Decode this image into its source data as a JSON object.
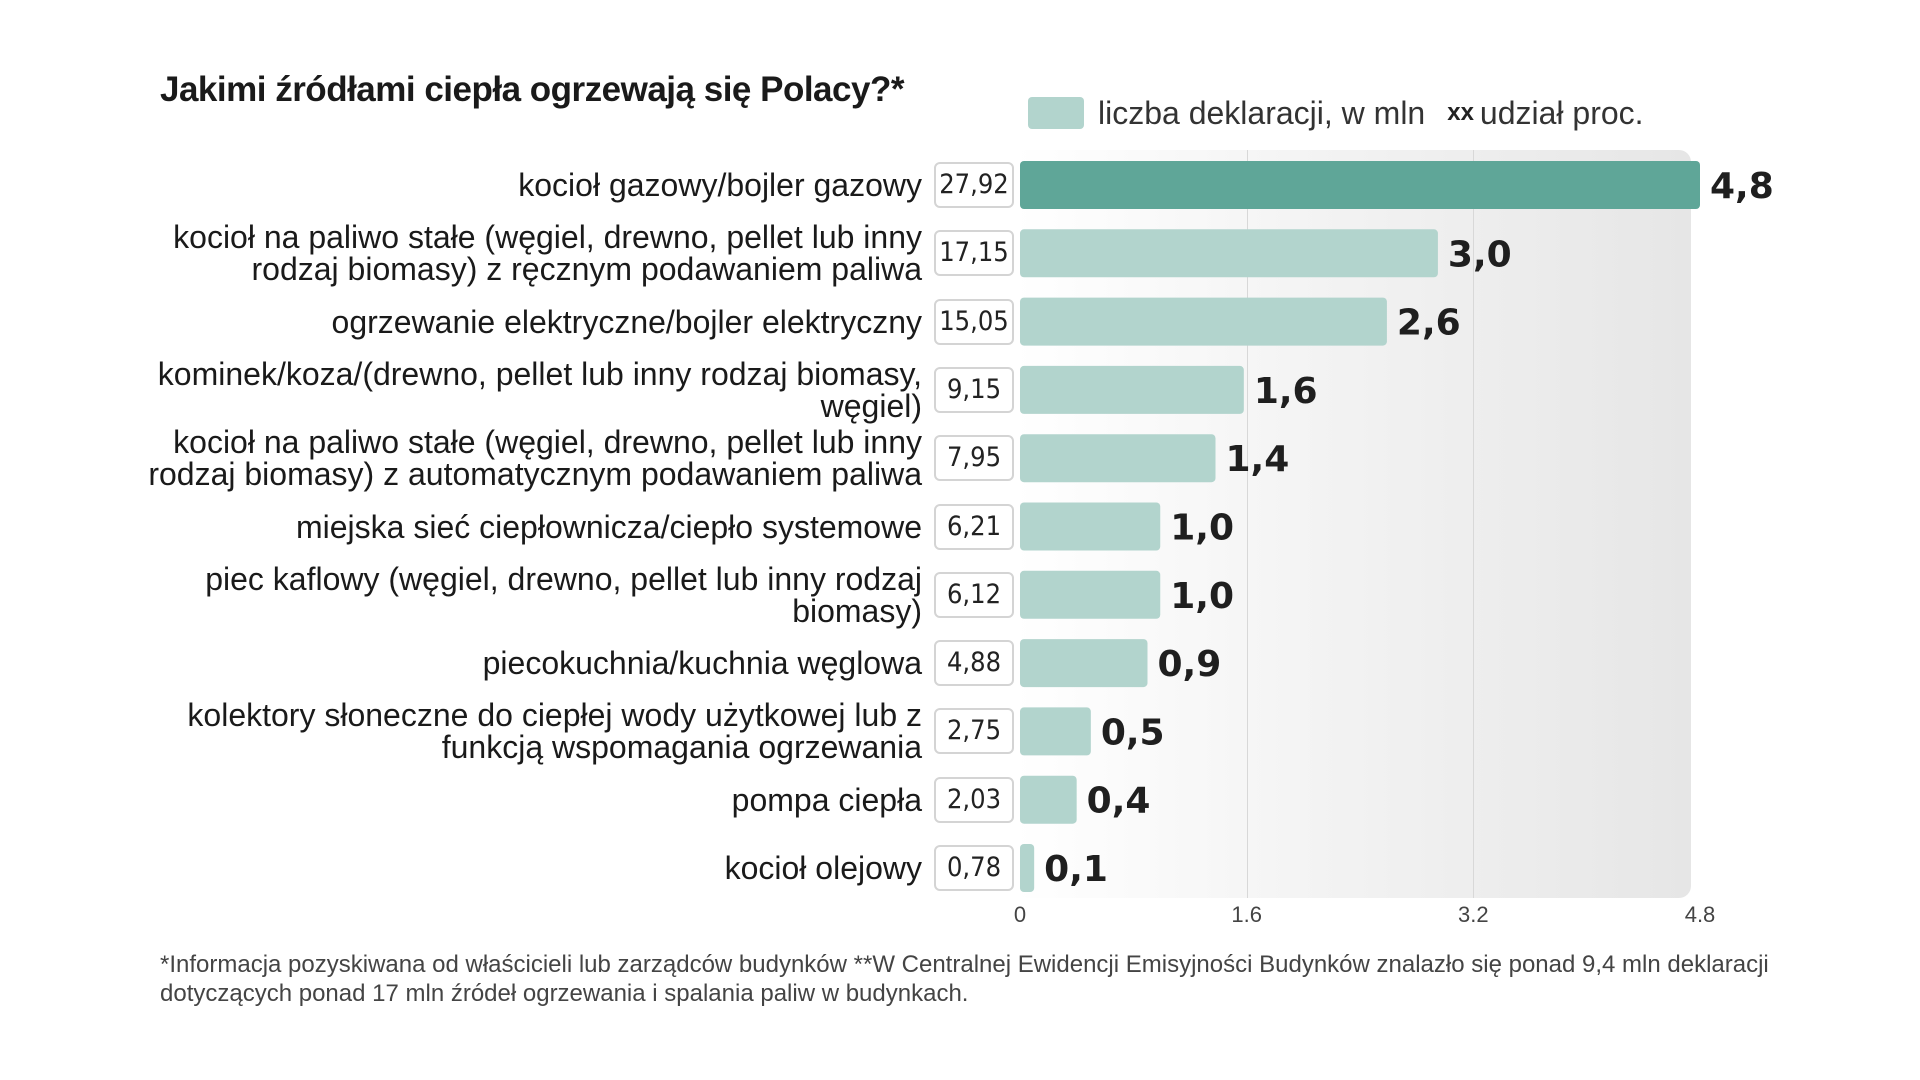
{
  "colors": {
    "highlight_bar": "#5fa698",
    "bar": "#b2d4cd",
    "legend_swatch": "#b2d4cd"
  },
  "chart_data": {
    "type": "bar",
    "orientation": "horizontal",
    "title": "Jakimi źródłami ciepła ogrzewają się Polacy?*",
    "legend": [
      {
        "marker": "",
        "label": "liczba deklaracji, w mln"
      },
      {
        "marker": "xx",
        "label": "udział proc."
      }
    ],
    "xlim": [
      0,
      4.8
    ],
    "ticks": [
      "0",
      "1.6",
      "3.2",
      "4.8"
    ],
    "tick_values": [
      0,
      1.6,
      3.2,
      4.8
    ],
    "categories": [
      "kocioł gazowy/bojler gazowy",
      "kocioł na paliwo stałe (węgiel, drewno, pellet lub inny rodzaj biomasy) z ręcznym podawaniem paliwa",
      "ogrzewanie elektryczne/bojler elektryczny",
      "kominek/koza/(drewno, pellet lub inny rodzaj biomasy, węgiel)",
      "kocioł na paliwo stałe (węgiel, drewno, pellet lub inny rodzaj biomasy) z automatycznym podawaniem paliwa",
      "miejska sieć ciepłownicza/ciepło systemowe",
      "piec kaflowy (węgiel, drewno, pellet lub inny rodzaj biomasy)",
      "piecokuchnia/kuchnia węglowa",
      "kolektory słoneczne do ciepłej wody użytkowej lub z funkcją wspomagania ogrzewania",
      "pompa ciepła",
      "kocioł olejowy"
    ],
    "values": [
      4.8,
      2.95,
      2.59,
      1.58,
      1.38,
      0.99,
      0.99,
      0.9,
      0.5,
      0.4,
      0.1
    ],
    "value_labels": [
      "4,8",
      "3,0",
      "2,6",
      "1,6",
      "1,4",
      "1,0",
      "1,0",
      "0,9",
      "0,5",
      "0,4",
      "0,1"
    ],
    "percent_labels": [
      "27,92",
      "17,15",
      "15,05",
      "9,15",
      "7,95",
      "6,21",
      "6,12",
      "4,88",
      "2,75",
      "2,03",
      "0,78"
    ],
    "highlight_index": 0
  },
  "footnote": "*Informacja pozyskiwana od właścicieli lub zarządców budynków **W Centralnej Ewidencji Emisyjności Budynków znalazło się ponad 9,4 mln deklaracji dotyczących ponad 17 mln źródeł ogrzewania i spalania paliw w budynkach."
}
